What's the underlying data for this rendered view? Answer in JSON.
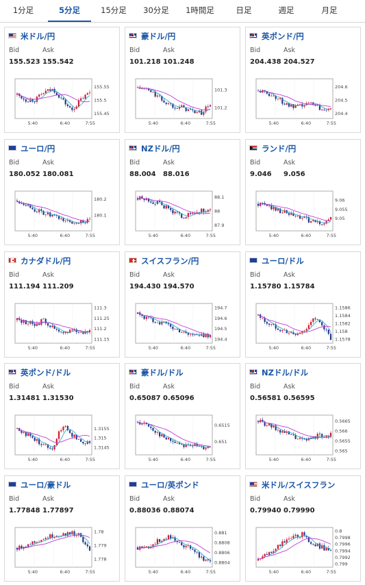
{
  "tabs": [
    {
      "label": "1分足",
      "active": false
    },
    {
      "label": "5分足",
      "active": true
    },
    {
      "label": "15分足",
      "active": false
    },
    {
      "label": "30分足",
      "active": false
    },
    {
      "label": "1時間足",
      "active": false
    },
    {
      "label": "日足",
      "active": false
    },
    {
      "label": "週足",
      "active": false
    },
    {
      "label": "月足",
      "active": false
    }
  ],
  "colors": {
    "accent": "#1a56a8",
    "candle_up": "#d21b2a",
    "candle_down": "#1f3a8a",
    "ma_short": "#31a8c7",
    "ma_long": "#c13ad6"
  },
  "labels": {
    "bid": "Bid",
    "ask": "Ask"
  },
  "pairs": [
    {
      "name": "米ドル/円",
      "flag": "us",
      "bid": "155.523",
      "ask": "155.542"
    },
    {
      "name": "豪ドル/円",
      "flag": "au",
      "bid": "101.218",
      "ask": "101.248"
    },
    {
      "name": "英ポンド/円",
      "flag": "gb",
      "bid": "204.438",
      "ask": "204.527"
    },
    {
      "name": "ユーロ/円",
      "flag": "eu",
      "bid": "180.052",
      "ask": "180.081"
    },
    {
      "name": "NZドル/円",
      "flag": "nz",
      "bid": "88.004",
      "ask": "88.016"
    },
    {
      "name": "ランド/円",
      "flag": "za",
      "bid": "9.046",
      "ask": "9.056"
    },
    {
      "name": "カナダドル/円",
      "flag": "ca",
      "bid": "111.194",
      "ask": "111.209"
    },
    {
      "name": "スイスフラン/円",
      "flag": "ch",
      "bid": "194.430",
      "ask": "194.570"
    },
    {
      "name": "ユーロ/ドル",
      "flag": "eu",
      "bid": "1.15780",
      "ask": "1.15784"
    },
    {
      "name": "英ポンド/ドル",
      "flag": "gb",
      "bid": "1.31481",
      "ask": "1.31530"
    },
    {
      "name": "豪ドル/ドル",
      "flag": "au",
      "bid": "0.65087",
      "ask": "0.65096"
    },
    {
      "name": "NZドル/ドル",
      "flag": "nz",
      "bid": "0.56581",
      "ask": "0.56595"
    },
    {
      "name": "ユーロ/豪ドル",
      "flag": "eu",
      "bid": "1.77848",
      "ask": "1.77897"
    },
    {
      "name": "ユーロ/英ポンド",
      "flag": "eu",
      "bid": "0.88036",
      "ask": "0.88074"
    },
    {
      "name": "米ドル/スイスフラン",
      "flag": "us",
      "bid": "0.79940",
      "ask": "0.79990"
    }
  ],
  "chart_data": [
    {
      "type": "candlestick",
      "x_ticks": [
        "5:40",
        "6:40",
        "7:55"
      ],
      "y_ticks": [
        155.55,
        155.5,
        155.45
      ],
      "ylim": [
        155.43,
        155.58
      ],
      "trend": [
        155.52,
        155.5,
        155.5,
        155.53,
        155.54,
        155.5,
        155.46,
        155.5,
        155.53
      ]
    },
    {
      "type": "candlestick",
      "x_ticks": [
        "5:40",
        "6:40",
        "7:55"
      ],
      "y_ticks": [
        101.3,
        101.2
      ],
      "ylim": [
        101.14,
        101.36
      ],
      "trend": [
        101.31,
        101.3,
        101.27,
        101.23,
        101.21,
        101.2,
        101.18,
        101.17,
        101.22
      ]
    },
    {
      "type": "candlestick",
      "x_ticks": [
        "5:40",
        "6:40",
        "7:55"
      ],
      "y_ticks": [
        204.6,
        204.5,
        204.4
      ],
      "ylim": [
        204.36,
        204.66
      ],
      "trend": [
        204.57,
        204.55,
        204.52,
        204.47,
        204.44,
        204.46,
        204.48,
        204.43,
        204.45
      ]
    },
    {
      "type": "candlestick",
      "x_ticks": [
        "5:40",
        "6:40",
        "7:55"
      ],
      "y_ticks": [
        180.2,
        180.1
      ],
      "ylim": [
        180.0,
        180.25
      ],
      "trend": [
        180.19,
        180.17,
        180.13,
        180.11,
        180.09,
        180.07,
        180.05,
        180.06,
        180.06
      ]
    },
    {
      "type": "candlestick",
      "x_ticks": [
        "5:40",
        "6:40",
        "7:55"
      ],
      "y_ticks": [
        88.1,
        88,
        87.9
      ],
      "ylim": [
        87.86,
        88.14
      ],
      "trend": [
        88.09,
        88.08,
        88.06,
        88.03,
        87.99,
        87.96,
        87.98,
        88.0,
        88.0
      ]
    },
    {
      "type": "candlestick",
      "x_ticks": [
        "5:40",
        "6:40",
        "7:55"
      ],
      "y_ticks": [
        9.06,
        9.055,
        9.05
      ],
      "ylim": [
        9.043,
        9.065
      ],
      "trend": [
        9.058,
        9.057,
        9.055,
        9.053,
        9.051,
        9.05,
        9.048,
        9.047,
        9.05
      ]
    },
    {
      "type": "candlestick",
      "x_ticks": [
        "5:40",
        "6:40",
        "7:55"
      ],
      "y_ticks": [
        111.3,
        111.25,
        111.2,
        111.15
      ],
      "ylim": [
        111.13,
        111.32
      ],
      "trend": [
        111.24,
        111.23,
        111.22,
        111.24,
        111.2,
        111.17,
        111.2,
        111.18,
        111.19
      ]
    },
    {
      "type": "candlestick",
      "x_ticks": [
        "5:40",
        "6:40",
        "7:55"
      ],
      "y_ticks": [
        194.7,
        194.6,
        194.5,
        194.4
      ],
      "ylim": [
        194.36,
        194.74
      ],
      "trend": [
        194.64,
        194.6,
        194.57,
        194.55,
        194.5,
        194.47,
        194.44,
        194.43,
        194.44
      ]
    },
    {
      "type": "candlestick",
      "x_ticks": [
        "5:40",
        "6:40",
        "7:55"
      ],
      "y_ticks": [
        1.1586,
        1.1584,
        1.1582,
        1.158,
        1.1578
      ],
      "ylim": [
        1.1577,
        1.1587
      ],
      "trend": [
        1.1584,
        1.1582,
        1.1581,
        1.158,
        1.1579,
        1.158,
        1.1583,
        1.1582,
        1.1578
      ]
    },
    {
      "type": "candlestick",
      "x_ticks": [
        "5:40",
        "6:40",
        "7:55"
      ],
      "y_ticks": [
        1.3155,
        1.315,
        1.3145
      ],
      "ylim": [
        1.3141,
        1.3162
      ],
      "trend": [
        1.3155,
        1.3152,
        1.3149,
        1.3146,
        1.3145,
        1.3157,
        1.3152,
        1.3148,
        1.3148
      ]
    },
    {
      "type": "candlestick",
      "x_ticks": [
        "5:40",
        "6:40",
        "7:55"
      ],
      "y_ticks": [
        0.6515,
        0.651
      ],
      "ylim": [
        0.6506,
        0.6518
      ],
      "trend": [
        0.6516,
        0.6515,
        0.6513,
        0.6511,
        0.651,
        0.6509,
        0.6509,
        0.6508,
        0.6509
      ]
    },
    {
      "type": "candlestick",
      "x_ticks": [
        "5:40",
        "6:40",
        "7:55"
      ],
      "y_ticks": [
        0.5665,
        0.566,
        0.5655,
        0.565
      ],
      "ylim": [
        0.5648,
        0.5668
      ],
      "trend": [
        0.5665,
        0.5663,
        0.5661,
        0.5659,
        0.5657,
        0.5655,
        0.5657,
        0.5658,
        0.5658
      ]
    },
    {
      "type": "candlestick",
      "x_ticks": [
        "5:40",
        "6:40",
        "7:55"
      ],
      "y_ticks": [
        1.78,
        1.779,
        1.778
      ],
      "ylim": [
        1.7774,
        1.7803
      ],
      "trend": [
        1.7788,
        1.779,
        1.7793,
        1.7795,
        1.7797,
        1.7798,
        1.7799,
        1.7797,
        1.7785
      ]
    },
    {
      "type": "candlestick",
      "x_ticks": [
        "5:40",
        "6:40",
        "7:55"
      ],
      "y_ticks": [
        0.881,
        0.8808,
        0.8806,
        0.8804
      ],
      "ylim": [
        0.8803,
        0.8811
      ],
      "trend": [
        0.8807,
        0.8807,
        0.8808,
        0.8809,
        0.8809,
        0.8807,
        0.8807,
        0.8805,
        0.8804
      ]
    },
    {
      "type": "candlestick",
      "x_ticks": [
        "5:40",
        "6:40",
        "7:55"
      ],
      "y_ticks": [
        0.8,
        0.7998,
        0.7996,
        0.7994,
        0.7992,
        0.799
      ],
      "ylim": [
        0.7989,
        0.8001
      ],
      "trend": [
        0.7991,
        0.7993,
        0.7995,
        0.7997,
        0.7998,
        0.7999,
        0.7996,
        0.7995,
        0.7994
      ]
    }
  ]
}
